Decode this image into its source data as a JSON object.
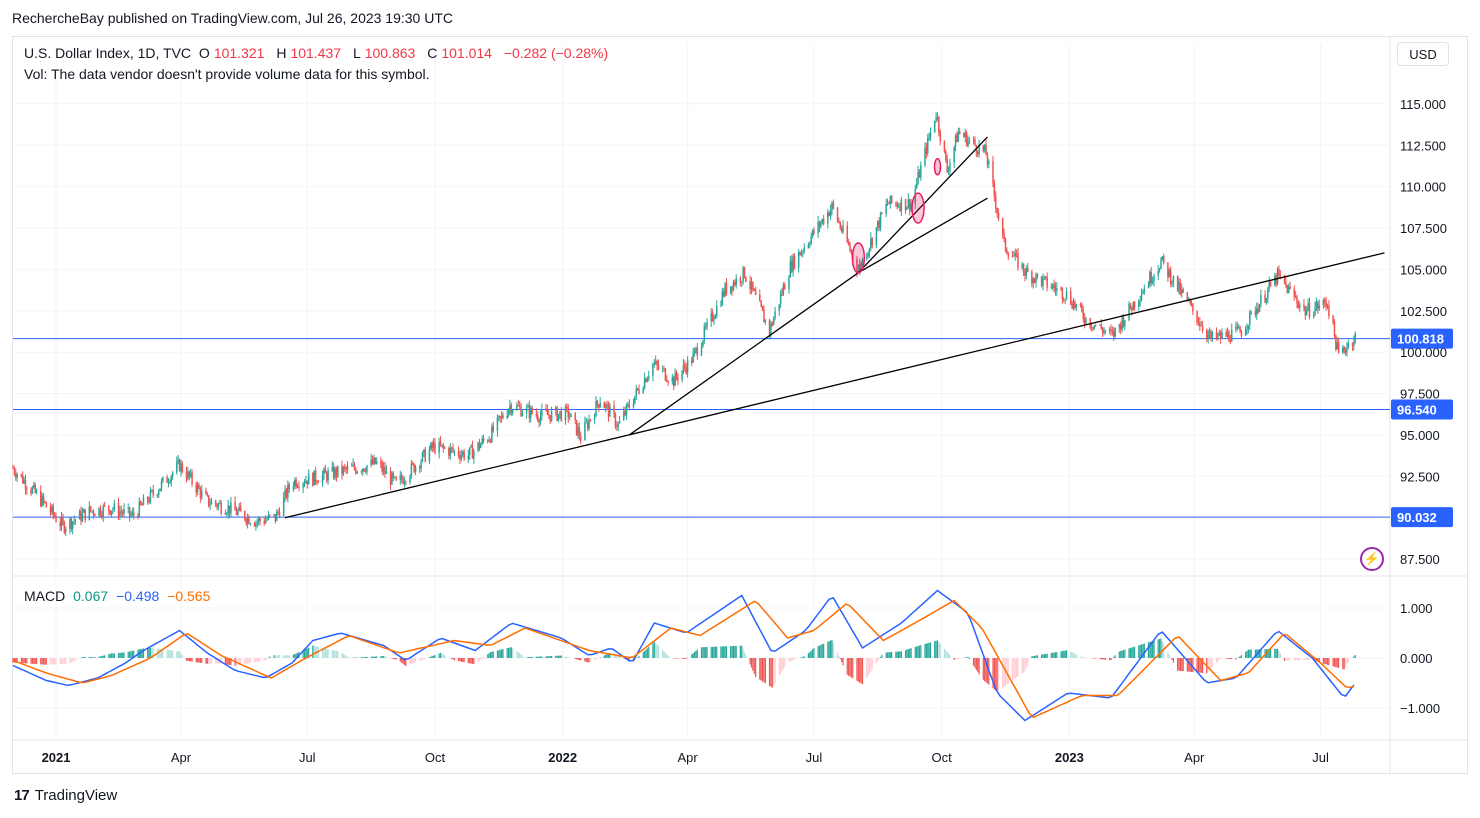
{
  "header": {
    "publisher": "RechercheBay published on TradingView.com, Jul 26, 2023 19:30 UTC"
  },
  "legend": {
    "symbol": "U.S. Dollar Index, 1D, TVC",
    "o_label": "O",
    "o_value": "101.321",
    "h_label": "H",
    "h_value": "101.437",
    "l_label": "L",
    "l_value": "100.863",
    "c_label": "C",
    "c_value": "101.014",
    "change": "−0.282 (−0.28%)",
    "vol_note": "Vol: The data vendor doesn't provide volume data for this symbol."
  },
  "currency_button": "USD",
  "macd_legend": {
    "label": "MACD",
    "hist": "0.067",
    "macd": "−0.498",
    "signal": "−0.565"
  },
  "footer": {
    "brand": "TradingView"
  },
  "colors": {
    "up": "#26a69a",
    "down": "#ef5350",
    "hline": "#2962ff",
    "macd": "#2962ff",
    "signal": "#ff6d00",
    "trend": "#000000",
    "ellipse": "#e91e63"
  },
  "chart_data": [
    {
      "type": "candlestick",
      "title": "U.S. Dollar Index, 1D, TVC",
      "x_ticks": [
        "2021",
        "Apr",
        "Jul",
        "Oct",
        "2022",
        "Apr",
        "Jul",
        "Oct",
        "2023",
        "Apr",
        "Jul"
      ],
      "y_ticks": [
        "115.000",
        "112.500",
        "110.000",
        "107.500",
        "105.000",
        "102.500",
        "100.000",
        "97.500",
        "95.000",
        "92.500",
        "87.500"
      ],
      "ylim": [
        86.6,
        116.2
      ],
      "x_range": [
        "2020-12-01",
        "2023-08-20"
      ],
      "close_path": [
        [
          "2020-12-01",
          93.0
        ],
        [
          "2020-12-20",
          91.2
        ],
        [
          "2021-01-06",
          89.5
        ],
        [
          "2021-01-25",
          90.4
        ],
        [
          "2021-02-10",
          90.6
        ],
        [
          "2021-02-25",
          90.1
        ],
        [
          "2021-03-31",
          93.2
        ],
        [
          "2021-04-20",
          91.0
        ],
        [
          "2021-05-05",
          90.6
        ],
        [
          "2021-05-25",
          89.8
        ],
        [
          "2021-06-08",
          90.0
        ],
        [
          "2021-06-20",
          92.2
        ],
        [
          "2021-07-05",
          92.4
        ],
        [
          "2021-08-20",
          93.3
        ],
        [
          "2021-09-03",
          92.0
        ],
        [
          "2021-09-30",
          94.3
        ],
        [
          "2021-10-25",
          93.8
        ],
        [
          "2021-11-10",
          95.0
        ],
        [
          "2021-11-24",
          96.8
        ],
        [
          "2021-12-15",
          96.2
        ],
        [
          "2022-01-05",
          96.3
        ],
        [
          "2022-01-14",
          94.9
        ],
        [
          "2022-01-28",
          97.2
        ],
        [
          "2022-02-10",
          95.6
        ],
        [
          "2022-03-07",
          99.3
        ],
        [
          "2022-03-22",
          98.3
        ],
        [
          "2022-04-05",
          99.7
        ],
        [
          "2022-04-28",
          103.8
        ],
        [
          "2022-05-12",
          104.8
        ],
        [
          "2022-05-30",
          101.3
        ],
        [
          "2022-06-14",
          105.2
        ],
        [
          "2022-07-14",
          108.8
        ],
        [
          "2022-08-02",
          105.0
        ],
        [
          "2022-08-23",
          109.0
        ],
        [
          "2022-09-09",
          109.0
        ],
        [
          "2022-09-27",
          114.5
        ],
        [
          "2022-10-05",
          111.0
        ],
        [
          "2022-10-13",
          113.3
        ],
        [
          "2022-11-02",
          112.0
        ],
        [
          "2022-11-15",
          106.5
        ],
        [
          "2022-12-01",
          104.8
        ],
        [
          "2022-12-30",
          103.5
        ],
        [
          "2023-01-13",
          102.0
        ],
        [
          "2023-02-01",
          101.0
        ],
        [
          "2023-03-08",
          105.5
        ],
        [
          "2023-04-13",
          100.8
        ],
        [
          "2023-05-04",
          101.2
        ],
        [
          "2023-05-31",
          104.6
        ],
        [
          "2023-06-20",
          102.5
        ],
        [
          "2023-07-06",
          103.0
        ],
        [
          "2023-07-14",
          99.8
        ],
        [
          "2023-07-26",
          101.0
        ]
      ],
      "horizontal_lines": [
        100.818,
        96.54,
        90.032
      ],
      "price_labels": [
        "100.818",
        "96.540",
        "90.032"
      ],
      "trendlines": [
        [
          [
            "2021-06-15",
            90.0
          ],
          [
            "2023-08-16",
            106.0
          ]
        ],
        [
          [
            "2022-02-18",
            95.0
          ],
          [
            "2022-08-02",
            104.8
          ],
          [
            "2022-11-03",
            109.3
          ]
        ],
        [
          [
            "2022-08-02",
            104.8
          ],
          [
            "2022-11-03",
            113.0
          ]
        ]
      ],
      "highlights": [
        [
          "2022-08-02",
          105.7
        ],
        [
          "2022-09-14",
          108.7
        ],
        [
          "2022-09-28",
          111.2
        ]
      ]
    },
    {
      "type": "line",
      "title": "MACD",
      "y_ticks": [
        "1.000",
        "0.000",
        "−1.000"
      ],
      "ylim": [
        -1.6,
        1.6
      ],
      "series": [
        {
          "name": "MACD",
          "points": [
            [
              "2020-12-01",
              -0.15
            ],
            [
              "2020-12-25",
              -0.45
            ],
            [
              "2021-01-10",
              -0.55
            ],
            [
              "2021-01-31",
              -0.4
            ],
            [
              "2021-02-20",
              -0.1
            ],
            [
              "2021-03-05",
              0.15
            ],
            [
              "2021-03-31",
              0.55
            ],
            [
              "2021-04-20",
              0.1
            ],
            [
              "2021-05-10",
              -0.25
            ],
            [
              "2021-06-01",
              -0.4
            ],
            [
              "2021-06-20",
              -0.1
            ],
            [
              "2021-07-05",
              0.35
            ],
            [
              "2021-07-25",
              0.5
            ],
            [
              "2021-08-25",
              0.25
            ],
            [
              "2021-09-10",
              -0.05
            ],
            [
              "2021-10-05",
              0.4
            ],
            [
              "2021-10-30",
              0.15
            ],
            [
              "2021-11-25",
              0.7
            ],
            [
              "2021-12-31",
              0.4
            ],
            [
              "2022-01-20",
              0.05
            ],
            [
              "2022-02-05",
              0.2
            ],
            [
              "2022-02-20",
              -0.1
            ],
            [
              "2022-03-08",
              0.7
            ],
            [
              "2022-03-31",
              0.5
            ],
            [
              "2022-05-10",
              1.25
            ],
            [
              "2022-06-01",
              0.1
            ],
            [
              "2022-06-25",
              0.55
            ],
            [
              "2022-07-14",
              1.25
            ],
            [
              "2022-08-05",
              0.2
            ],
            [
              "2022-09-02",
              0.7
            ],
            [
              "2022-09-28",
              1.35
            ],
            [
              "2022-10-20",
              0.9
            ],
            [
              "2022-11-10",
              -0.7
            ],
            [
              "2022-11-30",
              -1.25
            ],
            [
              "2022-12-31",
              -0.7
            ],
            [
              "2023-01-31",
              -0.8
            ],
            [
              "2023-03-08",
              0.55
            ],
            [
              "2023-04-10",
              -0.5
            ],
            [
              "2023-05-01",
              -0.4
            ],
            [
              "2023-05-31",
              0.55
            ],
            [
              "2023-06-25",
              0.0
            ],
            [
              "2023-07-18",
              -0.8
            ],
            [
              "2023-07-26",
              -0.5
            ]
          ]
        },
        {
          "name": "Signal",
          "points": [
            [
              "2020-12-01",
              -0.05
            ],
            [
              "2020-12-25",
              -0.3
            ],
            [
              "2021-01-20",
              -0.5
            ],
            [
              "2021-02-10",
              -0.35
            ],
            [
              "2021-03-10",
              0.0
            ],
            [
              "2021-04-05",
              0.5
            ],
            [
              "2021-04-30",
              0.05
            ],
            [
              "2021-06-05",
              -0.4
            ],
            [
              "2021-06-30",
              0.0
            ],
            [
              "2021-07-31",
              0.45
            ],
            [
              "2021-09-05",
              0.1
            ],
            [
              "2021-10-15",
              0.35
            ],
            [
              "2021-11-10",
              0.25
            ],
            [
              "2021-12-05",
              0.6
            ],
            [
              "2022-01-20",
              0.15
            ],
            [
              "2022-02-20",
              0.0
            ],
            [
              "2022-03-20",
              0.6
            ],
            [
              "2022-04-10",
              0.45
            ],
            [
              "2022-05-20",
              1.15
            ],
            [
              "2022-06-12",
              0.4
            ],
            [
              "2022-07-01",
              0.55
            ],
            [
              "2022-07-25",
              1.1
            ],
            [
              "2022-08-20",
              0.35
            ],
            [
              "2022-09-15",
              0.75
            ],
            [
              "2022-10-10",
              1.15
            ],
            [
              "2022-10-30",
              0.6
            ],
            [
              "2022-12-05",
              -1.2
            ],
            [
              "2023-01-10",
              -0.75
            ],
            [
              "2023-02-05",
              -0.75
            ],
            [
              "2023-03-20",
              0.45
            ],
            [
              "2023-04-20",
              -0.45
            ],
            [
              "2023-05-10",
              -0.3
            ],
            [
              "2023-06-05",
              0.5
            ],
            [
              "2023-07-01",
              -0.1
            ],
            [
              "2023-07-20",
              -0.6
            ],
            [
              "2023-07-26",
              -0.565
            ]
          ]
        }
      ]
    }
  ]
}
